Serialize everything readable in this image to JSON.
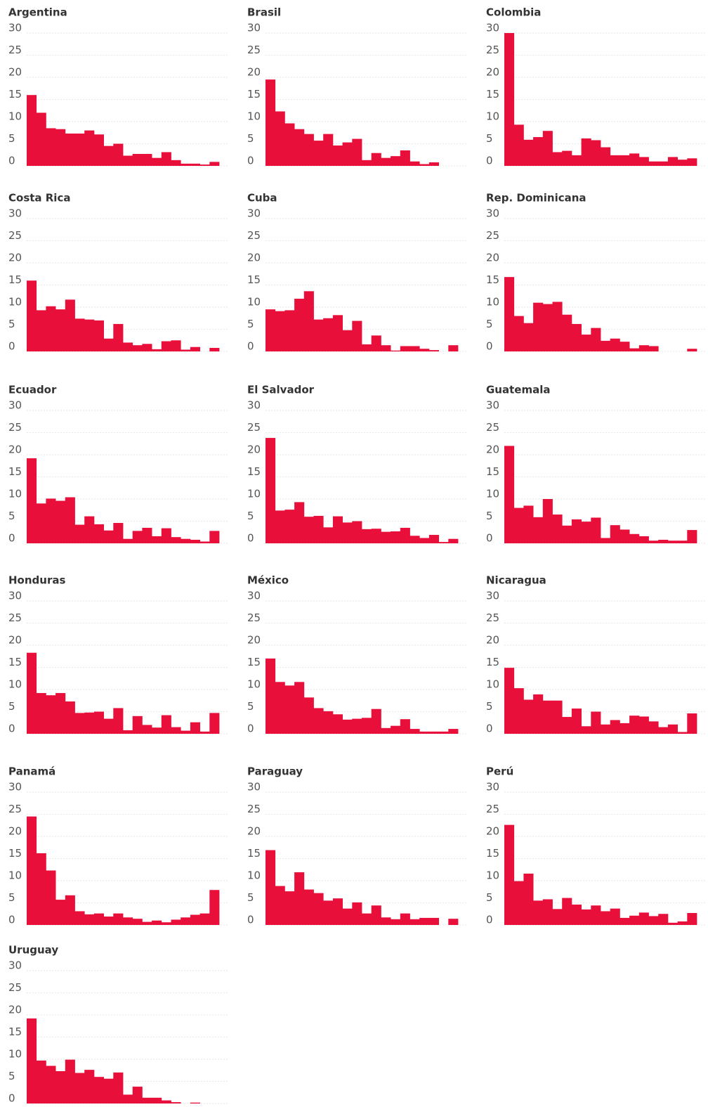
{
  "chart_data": [
    {
      "type": "bar",
      "title": "Argentina",
      "categories": [
        null,
        null,
        null,
        null,
        null,
        null,
        null,
        null,
        null,
        null,
        null,
        null,
        null,
        null,
        null,
        null,
        null,
        null,
        null,
        null
      ],
      "values": [
        16,
        12,
        8.5,
        8.3,
        7.3,
        7.3,
        8,
        7.1,
        4.5,
        5,
        2.3,
        2.7,
        2.7,
        1.8,
        3.1,
        1.3,
        0.5,
        0.5,
        0.3,
        0.9
      ],
      "color": "#e8103a",
      "ylim": [
        0,
        30
      ],
      "yticks": [
        0,
        5,
        10,
        15,
        20,
        25,
        30
      ],
      "grid": true
    },
    {
      "type": "bar",
      "title": "Brasil",
      "categories": [
        null,
        null,
        null,
        null,
        null,
        null,
        null,
        null,
        null,
        null,
        null,
        null,
        null,
        null,
        null,
        null,
        null,
        null,
        null,
        null
      ],
      "values": [
        19.5,
        12.3,
        9.6,
        8.3,
        7.2,
        5.7,
        7.2,
        4.6,
        5.3,
        6.1,
        1.3,
        2.9,
        1.8,
        2.2,
        3.5,
        1,
        0.4,
        0.8,
        0,
        0
      ],
      "color": "#e8103a",
      "ylim": [
        0,
        30
      ],
      "yticks": [
        0,
        5,
        10,
        15,
        20,
        25,
        30
      ],
      "grid": true
    },
    {
      "type": "bar",
      "title": "Colombia",
      "categories": [
        null,
        null,
        null,
        null,
        null,
        null,
        null,
        null,
        null,
        null,
        null,
        null,
        null,
        null,
        null,
        null,
        null,
        null,
        null,
        null
      ],
      "values": [
        30,
        9.3,
        5.9,
        6.5,
        7.9,
        3.1,
        3.4,
        2.4,
        6.2,
        5.8,
        4.2,
        2.4,
        2.4,
        2.8,
        2,
        1,
        1,
        2,
        1.4,
        1.7
      ],
      "color": "#e8103a",
      "ylim": [
        0,
        30
      ],
      "yticks": [
        0,
        5,
        10,
        15,
        20,
        25,
        30
      ],
      "grid": true
    },
    {
      "type": "bar",
      "title": "Costa Rica",
      "categories": [
        null,
        null,
        null,
        null,
        null,
        null,
        null,
        null,
        null,
        null,
        null,
        null,
        null,
        null,
        null,
        null,
        null,
        null,
        null,
        null
      ],
      "values": [
        16,
        9.3,
        10.2,
        9.5,
        11.7,
        7.4,
        7.2,
        7,
        2.9,
        6.2,
        2,
        1.4,
        1.7,
        0.5,
        2.3,
        2.5,
        0.4,
        1,
        0,
        0.8
      ],
      "color": "#e8103a",
      "ylim": [
        0,
        30
      ],
      "yticks": [
        0,
        5,
        10,
        15,
        20,
        25,
        30
      ],
      "grid": true
    },
    {
      "type": "bar",
      "title": "Cuba",
      "categories": [
        null,
        null,
        null,
        null,
        null,
        null,
        null,
        null,
        null,
        null,
        null,
        null,
        null,
        null,
        null,
        null,
        null,
        null,
        null,
        null
      ],
      "values": [
        9.5,
        9.1,
        9.3,
        11.9,
        13.6,
        7.2,
        7.5,
        8.2,
        4.8,
        6.9,
        1.6,
        3.6,
        1.4,
        0.2,
        1.2,
        1.2,
        0.6,
        0.3,
        0,
        1.4
      ],
      "color": "#e8103a",
      "ylim": [
        0,
        30
      ],
      "yticks": [
        0,
        5,
        10,
        15,
        20,
        25,
        30
      ],
      "grid": true
    },
    {
      "type": "bar",
      "title": "Rep. Dominicana",
      "categories": [
        null,
        null,
        null,
        null,
        null,
        null,
        null,
        null,
        null,
        null,
        null,
        null,
        null,
        null,
        null,
        null,
        null,
        null,
        null,
        null
      ],
      "values": [
        16.8,
        8,
        6.4,
        11,
        10.7,
        11.2,
        8.3,
        6.2,
        3.8,
        5.3,
        2.4,
        2.9,
        2.2,
        0.7,
        1.4,
        1.2,
        0,
        0,
        0,
        0.6
      ],
      "color": "#e8103a",
      "ylim": [
        0,
        30
      ],
      "yticks": [
        0,
        5,
        10,
        15,
        20,
        25,
        30
      ],
      "grid": true
    },
    {
      "type": "bar",
      "title": "Ecuador",
      "categories": [
        null,
        null,
        null,
        null,
        null,
        null,
        null,
        null,
        null,
        null,
        null,
        null,
        null,
        null,
        null,
        null,
        null,
        null,
        null,
        null
      ],
      "values": [
        19.2,
        9,
        10.1,
        9.6,
        10.4,
        4.2,
        6.1,
        4.3,
        2.9,
        4.6,
        1,
        2.8,
        3.5,
        1.6,
        3.4,
        1.4,
        1,
        0.8,
        0.4,
        2.8
      ],
      "color": "#e8103a",
      "ylim": [
        0,
        30
      ],
      "yticks": [
        0,
        5,
        10,
        15,
        20,
        25,
        30
      ],
      "grid": true
    },
    {
      "type": "bar",
      "title": "El Salvador",
      "categories": [
        null,
        null,
        null,
        null,
        null,
        null,
        null,
        null,
        null,
        null,
        null,
        null,
        null,
        null,
        null,
        null,
        null,
        null,
        null,
        null
      ],
      "values": [
        23.8,
        7.4,
        7.6,
        9.3,
        6,
        6.2,
        3.6,
        6.1,
        4.7,
        5,
        3.2,
        3.3,
        2.6,
        2.7,
        3.5,
        1.7,
        1.2,
        1.9,
        0.3,
        1
      ],
      "color": "#e8103a",
      "ylim": [
        0,
        30
      ],
      "yticks": [
        0,
        5,
        10,
        15,
        20,
        25,
        30
      ],
      "grid": true
    },
    {
      "type": "bar",
      "title": "Guatemala",
      "categories": [
        null,
        null,
        null,
        null,
        null,
        null,
        null,
        null,
        null,
        null,
        null,
        null,
        null,
        null,
        null,
        null,
        null,
        null,
        null,
        null
      ],
      "values": [
        22,
        8,
        8.5,
        5.9,
        10,
        6.5,
        4,
        5.4,
        4.9,
        5.8,
        1.2,
        4.1,
        3.1,
        2.1,
        1.6,
        0.6,
        0.8,
        0.6,
        0.6,
        3
      ],
      "color": "#e8103a",
      "ylim": [
        0,
        30
      ],
      "yticks": [
        0,
        5,
        10,
        15,
        20,
        25,
        30
      ],
      "grid": true
    },
    {
      "type": "bar",
      "title": "Honduras",
      "categories": [
        null,
        null,
        null,
        null,
        null,
        null,
        null,
        null,
        null,
        null,
        null,
        null,
        null,
        null,
        null,
        null,
        null,
        null,
        null,
        null
      ],
      "values": [
        18.3,
        9.2,
        8.7,
        9.2,
        7.3,
        4.7,
        4.8,
        5,
        3.4,
        5.8,
        0.8,
        4,
        2,
        1.4,
        4.2,
        1.5,
        0.7,
        2.6,
        0.5,
        4.7
      ],
      "color": "#e8103a",
      "ylim": [
        0,
        30
      ],
      "yticks": [
        0,
        5,
        10,
        15,
        20,
        25,
        30
      ],
      "grid": true
    },
    {
      "type": "bar",
      "title": "México",
      "categories": [
        null,
        null,
        null,
        null,
        null,
        null,
        null,
        null,
        null,
        null,
        null,
        null,
        null,
        null,
        null,
        null,
        null,
        null,
        null,
        null
      ],
      "values": [
        17,
        11.7,
        10.9,
        11.7,
        8.2,
        5.8,
        5.1,
        4.4,
        3.2,
        3.4,
        3.6,
        5.6,
        1.3,
        1.8,
        3.3,
        1.1,
        0.5,
        0.5,
        0.5,
        1.1
      ],
      "color": "#e8103a",
      "ylim": [
        0,
        30
      ],
      "yticks": [
        0,
        5,
        10,
        15,
        20,
        25,
        30
      ],
      "grid": true
    },
    {
      "type": "bar",
      "title": "Nicaragua",
      "categories": [
        null,
        null,
        null,
        null,
        null,
        null,
        null,
        null,
        null,
        null,
        null,
        null,
        null,
        null,
        null,
        null,
        null,
        null,
        null,
        null
      ],
      "values": [
        14.9,
        10.3,
        7.7,
        8.9,
        7.5,
        7.5,
        3.8,
        5.7,
        1.7,
        5,
        2.1,
        3.1,
        2.4,
        4.1,
        3.9,
        2.8,
        1.5,
        2.1,
        0.4,
        4.6
      ],
      "color": "#e8103a",
      "ylim": [
        0,
        30
      ],
      "yticks": [
        0,
        5,
        10,
        15,
        20,
        25,
        30
      ],
      "grid": true
    },
    {
      "type": "bar",
      "title": "Panamá",
      "categories": [
        null,
        null,
        null,
        null,
        null,
        null,
        null,
        null,
        null,
        null,
        null,
        null,
        null,
        null,
        null,
        null,
        null,
        null,
        null,
        null
      ],
      "values": [
        24.5,
        16.2,
        12.3,
        5.7,
        6.7,
        3.1,
        2.4,
        2.6,
        1.9,
        2.6,
        1.7,
        1.4,
        0.7,
        1,
        0.6,
        1.2,
        1.7,
        2.3,
        2.6,
        7.9
      ],
      "color": "#e8103a",
      "ylim": [
        0,
        30
      ],
      "yticks": [
        0,
        5,
        10,
        15,
        20,
        25,
        30
      ],
      "grid": true
    },
    {
      "type": "bar",
      "title": "Paraguay",
      "categories": [
        null,
        null,
        null,
        null,
        null,
        null,
        null,
        null,
        null,
        null,
        null,
        null,
        null,
        null,
        null,
        null,
        null,
        null,
        null,
        null
      ],
      "values": [
        16.9,
        8.8,
        7.6,
        11.9,
        8,
        7.2,
        5.5,
        6,
        3.7,
        5.1,
        2.6,
        4.4,
        1.7,
        1.3,
        2.6,
        1.3,
        1.6,
        1.6,
        0,
        1.4
      ],
      "color": "#e8103a",
      "ylim": [
        0,
        30
      ],
      "yticks": [
        0,
        5,
        10,
        15,
        20,
        25,
        30
      ],
      "grid": true
    },
    {
      "type": "bar",
      "title": "Perú",
      "categories": [
        null,
        null,
        null,
        null,
        null,
        null,
        null,
        null,
        null,
        null,
        null,
        null,
        null,
        null,
        null,
        null,
        null,
        null,
        null,
        null
      ],
      "values": [
        22.6,
        9.9,
        11.6,
        5.5,
        5.8,
        3.6,
        6.1,
        4.6,
        3.5,
        4.4,
        3.1,
        3.7,
        1.6,
        2.1,
        2.8,
        2,
        2.5,
        0.5,
        0.8,
        2.7
      ],
      "color": "#e8103a",
      "ylim": [
        0,
        30
      ],
      "yticks": [
        0,
        5,
        10,
        15,
        20,
        25,
        30
      ],
      "grid": true
    },
    {
      "type": "bar",
      "title": "Uruguay",
      "categories": [
        null,
        null,
        null,
        null,
        null,
        null,
        null,
        null,
        null,
        null,
        null,
        null,
        null,
        null,
        null,
        null,
        null,
        null,
        null,
        null
      ],
      "values": [
        19.2,
        9.7,
        8.5,
        7.3,
        9.9,
        6.9,
        7.6,
        6,
        5.6,
        7,
        2,
        3.8,
        1.3,
        1.3,
        0.7,
        0.3,
        0,
        0.2,
        0,
        0
      ],
      "color": "#e8103a",
      "ylim": [
        0,
        30
      ],
      "yticks": [
        0,
        5,
        10,
        15,
        20,
        25,
        30
      ],
      "grid": true
    }
  ]
}
